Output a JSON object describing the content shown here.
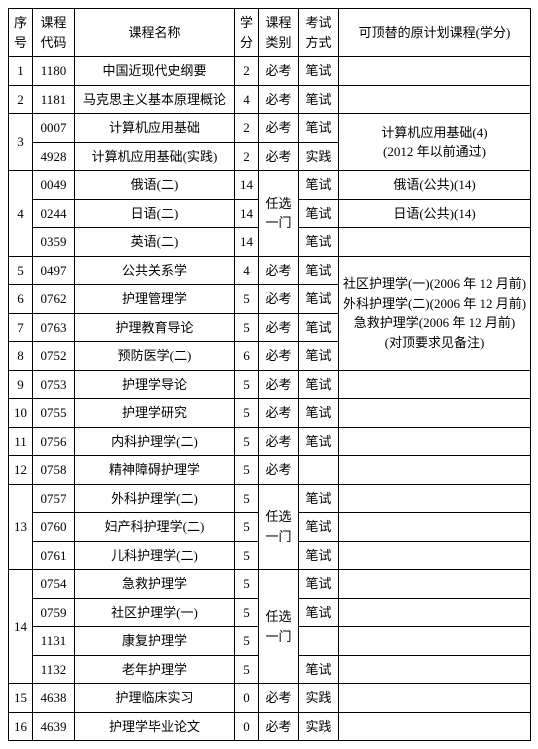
{
  "headers": {
    "seq": "序号",
    "code": "课程代码",
    "name": "课程名称",
    "credit": "学分",
    "type": "课程类别",
    "exam": "考试方式",
    "repl": "可顶替的原计划课程(学分)"
  },
  "rows": {
    "r1": {
      "seq": "1",
      "code": "1180",
      "name": "中国近现代史纲要",
      "credit": "2",
      "type": "必考",
      "exam": "笔试",
      "repl": ""
    },
    "r2": {
      "seq": "2",
      "code": "1181",
      "name": "马克思主义基本原理概论",
      "credit": "4",
      "type": "必考",
      "exam": "笔试",
      "repl": ""
    },
    "r3a": {
      "seq": "3",
      "code": "0007",
      "name": "计算机应用基础",
      "credit": "2",
      "type": "必考",
      "exam": "笔试"
    },
    "r3b": {
      "code": "4928",
      "name": "计算机应用基础(实践)",
      "credit": "2",
      "type": "必考",
      "exam": "实践"
    },
    "r3repl_l1": "计算机应用基础(4)",
    "r3repl_l2": "(2012 年以前通过)",
    "r4a": {
      "seq": "4",
      "code": "0049",
      "name": "俄语(二)",
      "credit": "14",
      "exam": "笔试",
      "repl": "俄语(公共)(14)"
    },
    "r4b": {
      "code": "0244",
      "name": "日语(二)",
      "credit": "14",
      "exam": "笔试",
      "repl": "日语(公共)(14)"
    },
    "r4c": {
      "code": "0359",
      "name": "英语(二)",
      "credit": "14",
      "exam": "笔试",
      "repl": ""
    },
    "r4type": "任选一门",
    "r5": {
      "seq": "5",
      "code": "0497",
      "name": "公共关系学",
      "credit": "4",
      "type": "必考",
      "exam": "笔试"
    },
    "r6": {
      "seq": "6",
      "code": "0762",
      "name": "护理管理学",
      "credit": "5",
      "type": "必考",
      "exam": "笔试"
    },
    "r7": {
      "seq": "7",
      "code": "0763",
      "name": "护理教育导论",
      "credit": "5",
      "type": "必考",
      "exam": "笔试"
    },
    "r8": {
      "seq": "8",
      "code": "0752",
      "name": "预防医学(二)",
      "credit": "6",
      "type": "必考",
      "exam": "笔试"
    },
    "r5_8repl_l1": "社区护理学(一)(2006 年 12 月前)",
    "r5_8repl_l2": "外科护理学(二)(2006 年 12 月前)",
    "r5_8repl_l3": "急救护理学(2006 年 12 月前)",
    "r5_8repl_l4": "(对顶要求见备注)",
    "r9": {
      "seq": "9",
      "code": "0753",
      "name": "护理学导论",
      "credit": "5",
      "type": "必考",
      "exam": "笔试",
      "repl": ""
    },
    "r10": {
      "seq": "10",
      "code": "0755",
      "name": "护理学研究",
      "credit": "5",
      "type": "必考",
      "exam": "笔试",
      "repl": ""
    },
    "r11": {
      "seq": "11",
      "code": "0756",
      "name": "内科护理学(二)",
      "credit": "5",
      "type": "必考",
      "exam": "笔试",
      "repl": ""
    },
    "r12": {
      "seq": "12",
      "code": "0758",
      "name": "精神障碍护理学",
      "credit": "5",
      "type": "必考",
      "repl": ""
    },
    "r13a": {
      "seq": "13",
      "code": "0757",
      "name": "外科护理学(二)",
      "credit": "5",
      "exam": "笔试",
      "repl": ""
    },
    "r13b": {
      "code": "0760",
      "name": "妇产科护理学(二)",
      "credit": "5",
      "exam": "笔试",
      "repl": ""
    },
    "r13c": {
      "code": "0761",
      "name": "儿科护理学(二)",
      "credit": "5",
      "exam": "笔试",
      "repl": ""
    },
    "r13type": "任选一门",
    "r14a": {
      "seq": "14",
      "code": "0754",
      "name": "急救护理学",
      "credit": "5",
      "exam": "笔试",
      "repl": ""
    },
    "r14b": {
      "code": "0759",
      "name": "社区护理学(一)",
      "credit": "5",
      "exam": "笔试",
      "repl": ""
    },
    "r14c": {
      "code": "1131",
      "name": "康复护理学",
      "credit": "5",
      "repl": ""
    },
    "r14d": {
      "code": "1132",
      "name": "老年护理学",
      "credit": "5",
      "exam": "笔试",
      "repl": ""
    },
    "r14type": "任选一门",
    "r15": {
      "seq": "15",
      "code": "4638",
      "name": "护理临床实习",
      "credit": "0",
      "type": "必考",
      "exam": "实践",
      "repl": ""
    },
    "r16": {
      "seq": "16",
      "code": "4639",
      "name": "护理学毕业论文",
      "credit": "0",
      "type": "必考",
      "exam": "实践",
      "repl": ""
    }
  }
}
